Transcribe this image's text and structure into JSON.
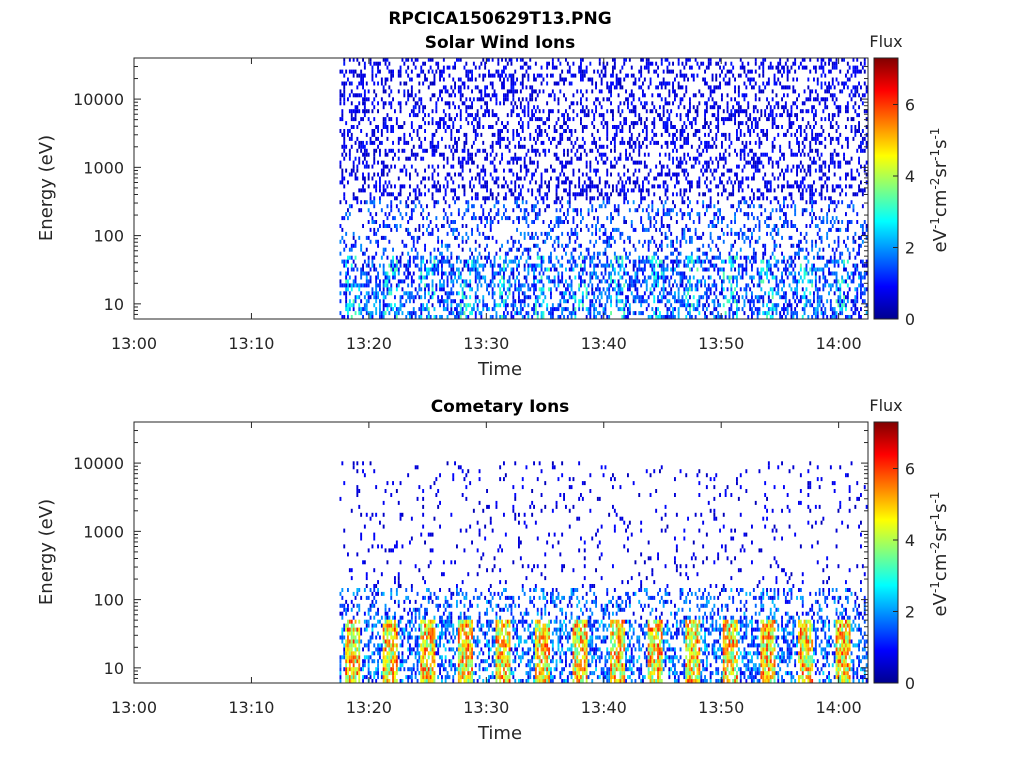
{
  "figure": {
    "title": "RPCICA150629T13.PNG"
  },
  "colors": {
    "background": "#ffffff",
    "axis": "#262626",
    "colormap": [
      "#00008f",
      "#0000ff",
      "#0080ff",
      "#00ffff",
      "#80ff80",
      "#ffff00",
      "#ff8000",
      "#ff0000",
      "#800000"
    ]
  },
  "chart_data": [
    {
      "type": "heatmap",
      "title": "Solar Wind Ions",
      "xlabel": "Time",
      "ylabel": "Energy (eV)",
      "x_range": [
        "13:00",
        "14:02"
      ],
      "x_ticks": [
        "13:00",
        "13:10",
        "13:20",
        "13:30",
        "13:40",
        "13:50",
        "14:00"
      ],
      "y_scale": "log",
      "y_range": [
        6,
        40000
      ],
      "y_ticks": [
        "10",
        "100",
        "1000",
        "10000"
      ],
      "data_start": "13:17:30",
      "colorbar": {
        "label_top": "Flux",
        "unit": "eV-1cm-2sr-1s-1",
        "range": [
          0,
          7.3
        ],
        "ticks": [
          "0",
          "2",
          "4",
          "6"
        ]
      },
      "profile": "sparse_high_energy_low_flux_with_weak_low_energy_bands"
    },
    {
      "type": "heatmap",
      "title": "Cometary Ions",
      "xlabel": "Time",
      "ylabel": "Energy (eV)",
      "x_range": [
        "13:00",
        "14:02"
      ],
      "x_ticks": [
        "13:00",
        "13:10",
        "13:20",
        "13:30",
        "13:40",
        "13:50",
        "14:00"
      ],
      "y_scale": "log",
      "y_range": [
        6,
        40000
      ],
      "y_ticks": [
        "10",
        "100",
        "1000",
        "10000"
      ],
      "data_start": "13:17:30",
      "colorbar": {
        "label_top": "Flux",
        "unit": "eV-1cm-2sr-1s-1",
        "range": [
          0,
          7.3
        ],
        "ticks": [
          "0",
          "2",
          "4",
          "6"
        ]
      },
      "profile": "periodic_low_energy_bursts_flux_up_to_6"
    }
  ]
}
